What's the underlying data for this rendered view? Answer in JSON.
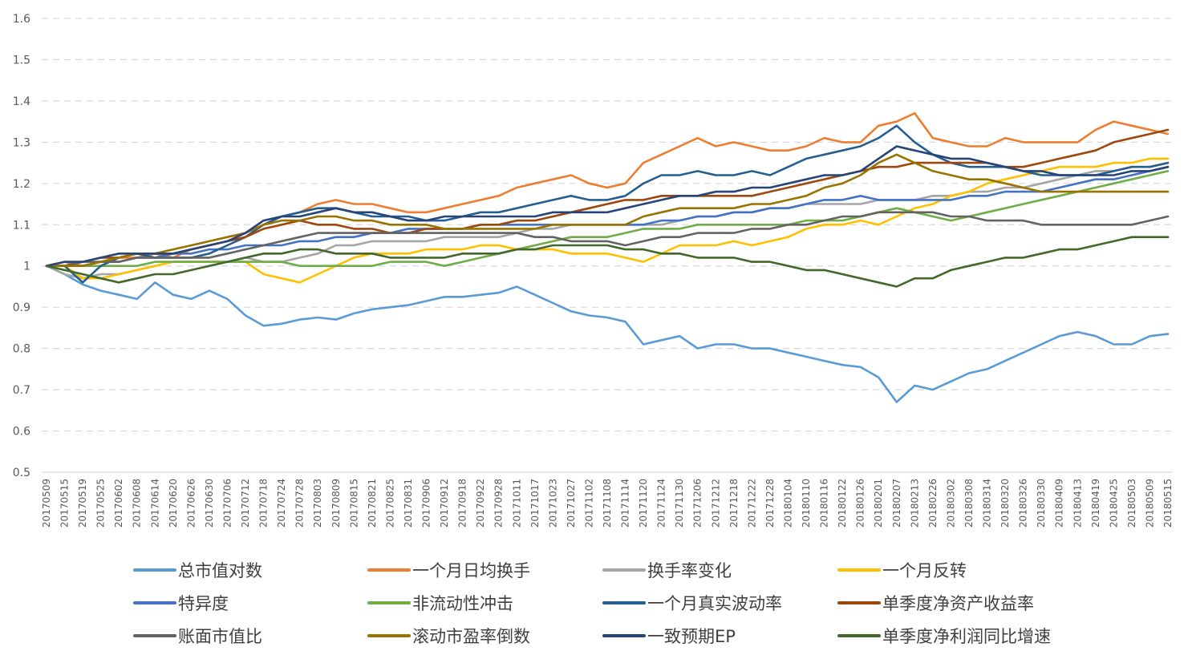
{
  "chart_data": {
    "type": "line",
    "title": "",
    "xlabel": "",
    "ylabel": "",
    "ylim": [
      0.5,
      1.6
    ],
    "yticks": [
      "0.5",
      "0.6",
      "0.7",
      "0.8",
      "0.9",
      "1",
      "1.1",
      "1.2",
      "1.3",
      "1.4",
      "1.5",
      "1.6"
    ],
    "grid": "horizontal-dashed",
    "legend_position": "bottom",
    "x_tick_labels": [
      "20170509",
      "20170515",
      "20170519",
      "20170525",
      "20170602",
      "20170608",
      "20170614",
      "20170620",
      "20170626",
      "20170630",
      "20170706",
      "20170712",
      "20170718",
      "20170724",
      "20170728",
      "20170803",
      "20170809",
      "20170815",
      "20170821",
      "20170825",
      "20170831",
      "20170906",
      "20170912",
      "20170918",
      "20170922",
      "20170928",
      "20171011",
      "20171017",
      "20171023",
      "20171027",
      "20171102",
      "20171108",
      "20171114",
      "20171120",
      "20171124",
      "20171130",
      "20171206",
      "20171212",
      "20171218",
      "20171222",
      "20171228",
      "20180104",
      "20180110",
      "20180116",
      "20180122",
      "20180126",
      "20180201",
      "20180207",
      "20180213",
      "20180226",
      "20180302",
      "20180308",
      "20180314",
      "20180320",
      "20180326",
      "20180330",
      "20180409",
      "20180413",
      "20180419",
      "20180425",
      "20180503",
      "20180509",
      "20180515"
    ],
    "series": [
      {
        "name": "总市值对数",
        "color": "#5B9BD5",
        "values": [
          1.0,
          0.98,
          0.955,
          0.94,
          0.93,
          0.92,
          0.96,
          0.93,
          0.92,
          0.94,
          0.92,
          0.88,
          0.855,
          0.86,
          0.87,
          0.875,
          0.87,
          0.885,
          0.895,
          0.9,
          0.905,
          0.915,
          0.925,
          0.925,
          0.93,
          0.935,
          0.95,
          0.93,
          0.91,
          0.89,
          0.88,
          0.875,
          0.865,
          0.81,
          0.82,
          0.83,
          0.8,
          0.81,
          0.81,
          0.8,
          0.8,
          0.79,
          0.78,
          0.77,
          0.76,
          0.755,
          0.73,
          0.67,
          0.71,
          0.7,
          0.72,
          0.74,
          0.75,
          0.77,
          0.79,
          0.81,
          0.83,
          0.84,
          0.83,
          0.81,
          0.81,
          0.83,
          0.835
        ]
      },
      {
        "name": "一个月日均换手",
        "color": "#ED7D31",
        "values": [
          1.0,
          1.01,
          1.0,
          1.01,
          1.02,
          1.02,
          1.03,
          1.02,
          1.04,
          1.05,
          1.06,
          1.08,
          1.1,
          1.12,
          1.13,
          1.15,
          1.16,
          1.15,
          1.15,
          1.14,
          1.13,
          1.13,
          1.14,
          1.15,
          1.16,
          1.17,
          1.19,
          1.2,
          1.21,
          1.22,
          1.2,
          1.19,
          1.2,
          1.25,
          1.27,
          1.29,
          1.31,
          1.29,
          1.3,
          1.29,
          1.28,
          1.28,
          1.29,
          1.31,
          1.3,
          1.3,
          1.34,
          1.35,
          1.37,
          1.31,
          1.3,
          1.29,
          1.29,
          1.31,
          1.3,
          1.3,
          1.3,
          1.3,
          1.33,
          1.35,
          1.34,
          1.33,
          1.32
        ]
      },
      {
        "name": "换手率变化",
        "color": "#A5A5A5",
        "values": [
          1.0,
          0.98,
          0.97,
          0.98,
          0.98,
          0.99,
          1.0,
          1.01,
          1.01,
          1.01,
          1.01,
          1.02,
          1.01,
          1.01,
          1.02,
          1.03,
          1.05,
          1.05,
          1.06,
          1.06,
          1.06,
          1.06,
          1.07,
          1.07,
          1.07,
          1.07,
          1.08,
          1.09,
          1.09,
          1.1,
          1.1,
          1.1,
          1.1,
          1.1,
          1.1,
          1.11,
          1.12,
          1.12,
          1.13,
          1.13,
          1.14,
          1.14,
          1.15,
          1.15,
          1.15,
          1.15,
          1.16,
          1.16,
          1.16,
          1.17,
          1.17,
          1.18,
          1.18,
          1.19,
          1.19,
          1.2,
          1.21,
          1.22,
          1.23,
          1.23,
          1.24,
          1.24,
          1.25
        ]
      },
      {
        "name": "一个月反转",
        "color": "#FFC000",
        "values": [
          1.0,
          1.0,
          0.97,
          0.97,
          0.98,
          0.99,
          1.0,
          1.01,
          1.01,
          1.01,
          1.01,
          1.01,
          0.98,
          0.97,
          0.96,
          0.98,
          1.0,
          1.02,
          1.03,
          1.03,
          1.03,
          1.04,
          1.04,
          1.04,
          1.05,
          1.05,
          1.04,
          1.04,
          1.04,
          1.03,
          1.03,
          1.03,
          1.02,
          1.01,
          1.03,
          1.05,
          1.05,
          1.05,
          1.06,
          1.05,
          1.06,
          1.07,
          1.09,
          1.1,
          1.1,
          1.11,
          1.1,
          1.12,
          1.14,
          1.15,
          1.17,
          1.18,
          1.2,
          1.21,
          1.22,
          1.23,
          1.24,
          1.24,
          1.24,
          1.25,
          1.25,
          1.26,
          1.26
        ]
      },
      {
        "name": "特异度",
        "color": "#4472C4",
        "values": [
          1.0,
          1.0,
          1.0,
          1.01,
          1.01,
          1.02,
          1.02,
          1.03,
          1.03,
          1.04,
          1.04,
          1.05,
          1.05,
          1.05,
          1.06,
          1.06,
          1.07,
          1.07,
          1.08,
          1.08,
          1.09,
          1.09,
          1.09,
          1.09,
          1.1,
          1.1,
          1.1,
          1.1,
          1.1,
          1.1,
          1.1,
          1.1,
          1.1,
          1.1,
          1.11,
          1.11,
          1.12,
          1.12,
          1.13,
          1.13,
          1.14,
          1.14,
          1.15,
          1.16,
          1.16,
          1.17,
          1.16,
          1.16,
          1.16,
          1.16,
          1.16,
          1.17,
          1.17,
          1.18,
          1.18,
          1.18,
          1.19,
          1.2,
          1.21,
          1.21,
          1.22,
          1.23,
          1.24
        ]
      },
      {
        "name": "非流动性冲击",
        "color": "#70AD47",
        "values": [
          1.0,
          1.0,
          1.0,
          1.0,
          1.0,
          1.0,
          1.01,
          1.01,
          1.01,
          1.01,
          1.01,
          1.01,
          1.01,
          1.01,
          1.0,
          1.0,
          1.0,
          1.0,
          1.0,
          1.01,
          1.01,
          1.01,
          1.0,
          1.01,
          1.02,
          1.03,
          1.04,
          1.05,
          1.06,
          1.07,
          1.07,
          1.07,
          1.08,
          1.09,
          1.09,
          1.09,
          1.1,
          1.1,
          1.1,
          1.1,
          1.1,
          1.1,
          1.11,
          1.11,
          1.11,
          1.12,
          1.13,
          1.14,
          1.13,
          1.12,
          1.11,
          1.12,
          1.13,
          1.14,
          1.15,
          1.16,
          1.17,
          1.18,
          1.19,
          1.2,
          1.21,
          1.22,
          1.23
        ]
      },
      {
        "name": "一个月真实波动率",
        "color": "#255E91",
        "values": [
          1.0,
          1.0,
          0.96,
          1.0,
          1.02,
          1.03,
          1.02,
          1.02,
          1.02,
          1.03,
          1.05,
          1.07,
          1.1,
          1.12,
          1.13,
          1.14,
          1.14,
          1.13,
          1.12,
          1.12,
          1.12,
          1.11,
          1.11,
          1.12,
          1.13,
          1.13,
          1.14,
          1.15,
          1.16,
          1.17,
          1.16,
          1.16,
          1.17,
          1.2,
          1.22,
          1.22,
          1.23,
          1.22,
          1.22,
          1.23,
          1.22,
          1.24,
          1.26,
          1.27,
          1.28,
          1.29,
          1.31,
          1.34,
          1.3,
          1.27,
          1.25,
          1.24,
          1.24,
          1.24,
          1.23,
          1.22,
          1.22,
          1.22,
          1.22,
          1.23,
          1.24,
          1.24,
          1.25
        ]
      },
      {
        "name": "单季度净资产收益率",
        "color": "#9E480E",
        "values": [
          1.0,
          1.0,
          1.01,
          1.02,
          1.02,
          1.03,
          1.03,
          1.03,
          1.04,
          1.05,
          1.06,
          1.07,
          1.09,
          1.1,
          1.11,
          1.1,
          1.1,
          1.09,
          1.09,
          1.08,
          1.08,
          1.09,
          1.09,
          1.09,
          1.1,
          1.1,
          1.11,
          1.11,
          1.12,
          1.13,
          1.14,
          1.15,
          1.16,
          1.16,
          1.17,
          1.17,
          1.17,
          1.17,
          1.17,
          1.17,
          1.18,
          1.19,
          1.2,
          1.21,
          1.22,
          1.23,
          1.24,
          1.24,
          1.25,
          1.25,
          1.25,
          1.25,
          1.25,
          1.24,
          1.24,
          1.25,
          1.26,
          1.27,
          1.28,
          1.3,
          1.31,
          1.32,
          1.33
        ]
      },
      {
        "name": "账面市值比",
        "color": "#636363",
        "values": [
          1.0,
          1.0,
          1.01,
          1.01,
          1.01,
          1.02,
          1.02,
          1.02,
          1.02,
          1.02,
          1.03,
          1.04,
          1.05,
          1.06,
          1.07,
          1.08,
          1.08,
          1.08,
          1.08,
          1.08,
          1.08,
          1.08,
          1.08,
          1.08,
          1.08,
          1.08,
          1.08,
          1.07,
          1.07,
          1.06,
          1.06,
          1.06,
          1.05,
          1.06,
          1.07,
          1.07,
          1.08,
          1.08,
          1.08,
          1.09,
          1.09,
          1.1,
          1.1,
          1.11,
          1.12,
          1.12,
          1.13,
          1.13,
          1.13,
          1.13,
          1.12,
          1.12,
          1.11,
          1.11,
          1.11,
          1.1,
          1.1,
          1.1,
          1.1,
          1.1,
          1.1,
          1.11,
          1.12
        ]
      },
      {
        "name": "滚动市盈率倒数",
        "color": "#997300",
        "values": [
          1.0,
          1.0,
          1.0,
          1.01,
          1.02,
          1.03,
          1.03,
          1.04,
          1.05,
          1.06,
          1.07,
          1.08,
          1.1,
          1.11,
          1.11,
          1.12,
          1.12,
          1.11,
          1.11,
          1.1,
          1.1,
          1.1,
          1.09,
          1.09,
          1.09,
          1.09,
          1.09,
          1.09,
          1.1,
          1.1,
          1.1,
          1.1,
          1.1,
          1.12,
          1.13,
          1.14,
          1.14,
          1.14,
          1.14,
          1.15,
          1.15,
          1.16,
          1.17,
          1.19,
          1.2,
          1.22,
          1.25,
          1.27,
          1.25,
          1.23,
          1.22,
          1.21,
          1.21,
          1.2,
          1.19,
          1.18,
          1.18,
          1.18,
          1.18,
          1.18,
          1.18,
          1.18,
          1.18
        ]
      },
      {
        "name": "一致预期EP",
        "color": "#264478",
        "values": [
          1.0,
          1.01,
          1.01,
          1.02,
          1.03,
          1.03,
          1.03,
          1.03,
          1.04,
          1.05,
          1.06,
          1.08,
          1.11,
          1.12,
          1.12,
          1.13,
          1.14,
          1.13,
          1.13,
          1.12,
          1.11,
          1.11,
          1.12,
          1.12,
          1.12,
          1.12,
          1.12,
          1.12,
          1.13,
          1.13,
          1.13,
          1.13,
          1.14,
          1.15,
          1.16,
          1.17,
          1.17,
          1.18,
          1.18,
          1.19,
          1.19,
          1.2,
          1.21,
          1.22,
          1.22,
          1.23,
          1.26,
          1.29,
          1.28,
          1.27,
          1.26,
          1.26,
          1.25,
          1.24,
          1.23,
          1.23,
          1.22,
          1.22,
          1.22,
          1.22,
          1.23,
          1.23,
          1.24
        ]
      },
      {
        "name": "单季度净利润同比增速",
        "color": "#43682B",
        "values": [
          1.0,
          0.99,
          0.98,
          0.97,
          0.96,
          0.97,
          0.98,
          0.98,
          0.99,
          1.0,
          1.01,
          1.02,
          1.03,
          1.03,
          1.04,
          1.04,
          1.03,
          1.03,
          1.03,
          1.02,
          1.02,
          1.02,
          1.02,
          1.03,
          1.03,
          1.03,
          1.04,
          1.04,
          1.05,
          1.05,
          1.05,
          1.05,
          1.04,
          1.04,
          1.03,
          1.03,
          1.02,
          1.02,
          1.02,
          1.01,
          1.01,
          1.0,
          0.99,
          0.99,
          0.98,
          0.97,
          0.96,
          0.95,
          0.97,
          0.97,
          0.99,
          1.0,
          1.01,
          1.02,
          1.02,
          1.03,
          1.04,
          1.04,
          1.05,
          1.06,
          1.07,
          1.07,
          1.07
        ]
      }
    ]
  }
}
